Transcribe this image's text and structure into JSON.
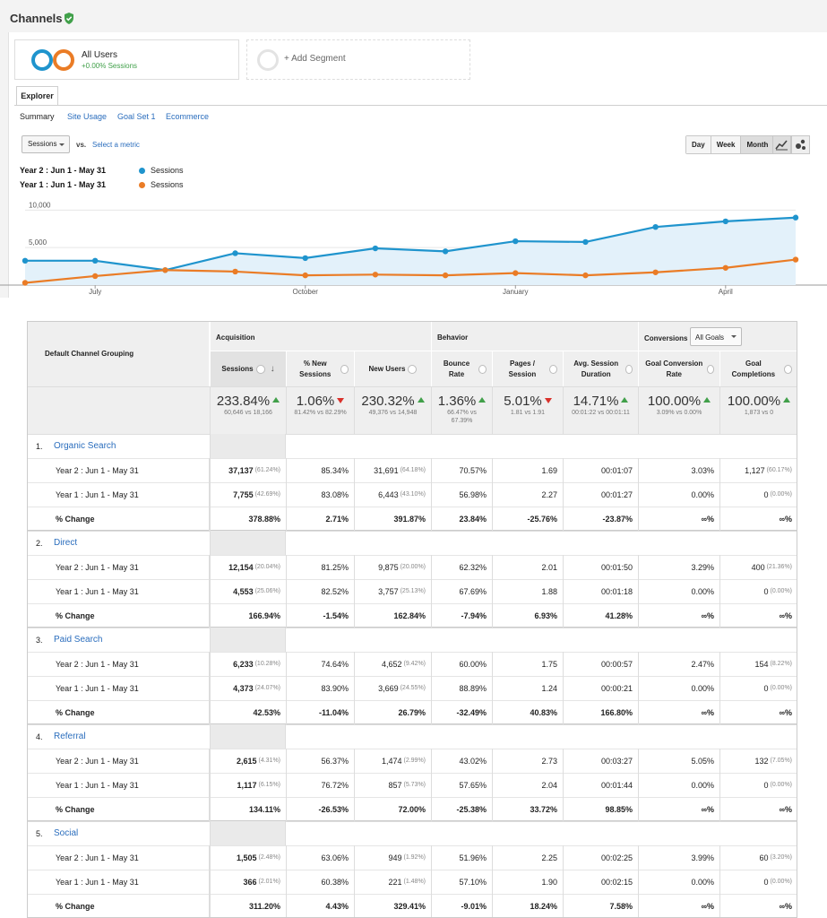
{
  "header": {
    "title": "Channels"
  },
  "segments": [
    {
      "name": "All Users",
      "sub": "+0.00% Sessions"
    },
    {
      "name": "+ Add Segment"
    }
  ],
  "tabs": {
    "explorer": "Explorer",
    "subtabs": [
      "Summary",
      "Site Usage",
      "Goal Set 1",
      "Ecommerce"
    ]
  },
  "controls": {
    "metric": "Sessions",
    "vs": "vs.",
    "select_metric": "Select a metric",
    "periods": [
      "Day",
      "Week",
      "Month"
    ],
    "selected_period": "Month"
  },
  "legend": [
    {
      "range": "Year 2 : Jun 1 - May 31",
      "series": "Sessions",
      "color": "#1f94cd"
    },
    {
      "range": "Year 1 : Jun 1 - May 31",
      "series": "Sessions",
      "color": "#ea7c26"
    }
  ],
  "chart_data": {
    "type": "line",
    "yticks": [
      "10,000",
      "5,000"
    ],
    "xticks": [
      "July",
      "October",
      "January",
      "April"
    ],
    "ylim": [
      0,
      11000
    ],
    "series": [
      {
        "name": "Sessions",
        "color": "#1f94cd",
        "values": [
          3250,
          3250,
          2000,
          4250,
          3600,
          4900,
          4500,
          5850,
          5750,
          7750,
          8500,
          9000
        ]
      },
      {
        "name": "Sessions",
        "color": "#ea7c26",
        "values": [
          300,
          1200,
          2000,
          1800,
          1300,
          1400,
          1300,
          1600,
          1300,
          1700,
          2300,
          3400
        ]
      }
    ]
  },
  "table": {
    "first_col": "Default Channel Grouping",
    "groups": {
      "acq": "Acquisition",
      "beh": "Behavior",
      "conv": "Conversions",
      "goals": "All Goals"
    },
    "columns": [
      "Sessions",
      "% New Sessions",
      "New Users",
      "Bounce Rate",
      "Pages / Session",
      "Avg. Session Duration",
      "Goal Conversion Rate",
      "Goal Completions"
    ],
    "totals": [
      {
        "big": "233.84%",
        "dir": "up",
        "small": "60,646 vs 18,166"
      },
      {
        "big": "1.06%",
        "dir": "down",
        "small": "81.42% vs 82.29%"
      },
      {
        "big": "230.32%",
        "dir": "up",
        "small": "49,376 vs 14,948"
      },
      {
        "big": "1.36%",
        "dir": "up",
        "small": "66.47% vs 67.39%"
      },
      {
        "big": "5.01%",
        "dir": "down",
        "small": "1.81 vs 1.91"
      },
      {
        "big": "14.71%",
        "dir": "up",
        "small": "00:01:22 vs 00:01:11"
      },
      {
        "big": "100.00%",
        "dir": "up",
        "small": "3.09% vs 0.00%"
      },
      {
        "big": "100.00%",
        "dir": "up",
        "small": "1,873 vs 0"
      }
    ],
    "channels": [
      {
        "idx": "1.",
        "name": "Organic Search",
        "rows": [
          {
            "label": "Year 2 : Jun 1 - May 31",
            "c": [
              "37,137",
              "85.34%",
              "31,691",
              "70.57%",
              "1.69",
              "00:01:07",
              "3.03%",
              "1,127"
            ],
            "p": [
              "(61.24%)",
              "",
              "(64.18%)",
              "",
              "",
              "",
              "",
              "(60.17%)"
            ]
          },
          {
            "label": "Year 1 : Jun 1 - May 31",
            "c": [
              "7,755",
              "83.08%",
              "6,443",
              "56.98%",
              "2.27",
              "00:01:27",
              "0.00%",
              "0"
            ],
            "p": [
              "(42.69%)",
              "",
              "(43.10%)",
              "",
              "",
              "",
              "",
              "(0.00%)"
            ]
          },
          {
            "label": "% Change",
            "bold": true,
            "c": [
              "378.88%",
              "2.71%",
              "391.87%",
              "23.84%",
              "-25.76%",
              "-23.87%",
              "∞%",
              "∞%"
            ]
          }
        ]
      },
      {
        "idx": "2.",
        "name": "Direct",
        "rows": [
          {
            "label": "Year 2 : Jun 1 - May 31",
            "c": [
              "12,154",
              "81.25%",
              "9,875",
              "62.32%",
              "2.01",
              "00:01:50",
              "3.29%",
              "400"
            ],
            "p": [
              "(20.04%)",
              "",
              "(20.00%)",
              "",
              "",
              "",
              "",
              "(21.36%)"
            ]
          },
          {
            "label": "Year 1 : Jun 1 - May 31",
            "c": [
              "4,553",
              "82.52%",
              "3,757",
              "67.69%",
              "1.88",
              "00:01:18",
              "0.00%",
              "0"
            ],
            "p": [
              "(25.06%)",
              "",
              "(25.13%)",
              "",
              "",
              "",
              "",
              "(0.00%)"
            ]
          },
          {
            "label": "% Change",
            "bold": true,
            "c": [
              "166.94%",
              "-1.54%",
              "162.84%",
              "-7.94%",
              "6.93%",
              "41.28%",
              "∞%",
              "∞%"
            ]
          }
        ]
      },
      {
        "idx": "3.",
        "name": "Paid Search",
        "rows": [
          {
            "label": "Year 2 : Jun 1 - May 31",
            "c": [
              "6,233",
              "74.64%",
              "4,652",
              "60.00%",
              "1.75",
              "00:00:57",
              "2.47%",
              "154"
            ],
            "p": [
              "(10.28%)",
              "",
              "(9.42%)",
              "",
              "",
              "",
              "",
              "(8.22%)"
            ]
          },
          {
            "label": "Year 1 : Jun 1 - May 31",
            "c": [
              "4,373",
              "83.90%",
              "3,669",
              "88.89%",
              "1.24",
              "00:00:21",
              "0.00%",
              "0"
            ],
            "p": [
              "(24.07%)",
              "",
              "(24.55%)",
              "",
              "",
              "",
              "",
              "(0.00%)"
            ]
          },
          {
            "label": "% Change",
            "bold": true,
            "c": [
              "42.53%",
              "-11.04%",
              "26.79%",
              "-32.49%",
              "40.83%",
              "166.80%",
              "∞%",
              "∞%"
            ]
          }
        ]
      },
      {
        "idx": "4.",
        "name": "Referral",
        "rows": [
          {
            "label": "Year 2 : Jun 1 - May 31",
            "c": [
              "2,615",
              "56.37%",
              "1,474",
              "43.02%",
              "2.73",
              "00:03:27",
              "5.05%",
              "132"
            ],
            "p": [
              "(4.31%)",
              "",
              "(2.99%)",
              "",
              "",
              "",
              "",
              "(7.05%)"
            ]
          },
          {
            "label": "Year 1 : Jun 1 - May 31",
            "c": [
              "1,117",
              "76.72%",
              "857",
              "57.65%",
              "2.04",
              "00:01:44",
              "0.00%",
              "0"
            ],
            "p": [
              "(6.15%)",
              "",
              "(5.73%)",
              "",
              "",
              "",
              "",
              "(0.00%)"
            ]
          },
          {
            "label": "% Change",
            "bold": true,
            "c": [
              "134.11%",
              "-26.53%",
              "72.00%",
              "-25.38%",
              "33.72%",
              "98.85%",
              "∞%",
              "∞%"
            ]
          }
        ]
      },
      {
        "idx": "5.",
        "name": "Social",
        "rows": [
          {
            "label": "Year 2 : Jun 1 - May 31",
            "c": [
              "1,505",
              "63.06%",
              "949",
              "51.96%",
              "2.25",
              "00:02:25",
              "3.99%",
              "60"
            ],
            "p": [
              "(2.48%)",
              "",
              "(1.92%)",
              "",
              "",
              "",
              "",
              "(3.20%)"
            ]
          },
          {
            "label": "Year 1 : Jun 1 - May 31",
            "c": [
              "366",
              "60.38%",
              "221",
              "57.10%",
              "1.90",
              "00:02:15",
              "0.00%",
              "0"
            ],
            "p": [
              "(2.01%)",
              "",
              "(1.48%)",
              "",
              "",
              "",
              "",
              "(0.00%)"
            ]
          },
          {
            "label": "% Change",
            "bold": true,
            "c": [
              "311.20%",
              "4.43%",
              "329.41%",
              "-9.01%",
              "18.24%",
              "7.58%",
              "∞%",
              "∞%"
            ]
          }
        ]
      }
    ]
  }
}
